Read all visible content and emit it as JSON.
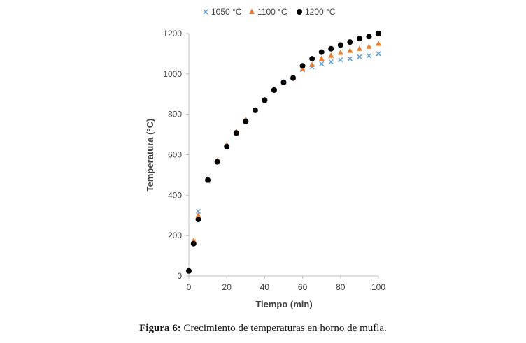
{
  "caption": {
    "label": "Figura 6:",
    "text": "Crecimiento de temperaturas en horno de mufla."
  },
  "chart_data": {
    "type": "scatter",
    "title": "",
    "xlabel": "Tiempo (min)",
    "ylabel": "Temperatura (°C)",
    "xlim": [
      0,
      100
    ],
    "ylim": [
      0,
      1200
    ],
    "xticks": [
      "0",
      "20",
      "40",
      "60",
      "80",
      "100"
    ],
    "yticks": [
      "0",
      "200",
      "400",
      "600",
      "800",
      "1000",
      "1200"
    ],
    "grid": false,
    "legend_position": "top",
    "series": [
      {
        "name": "1050 °C",
        "marker": "x",
        "color": "#5B9BD5",
        "x": [
          0,
          2.5,
          5,
          10,
          15,
          20,
          25,
          30,
          35,
          40,
          45,
          50,
          55,
          60,
          65,
          70,
          75,
          80,
          85,
          90,
          95,
          100
        ],
        "y": [
          25,
          170,
          320,
          470,
          565,
          640,
          705,
          765,
          820,
          870,
          920,
          960,
          980,
          1020,
          1035,
          1050,
          1060,
          1070,
          1075,
          1085,
          1090,
          1100
        ]
      },
      {
        "name": "1100 °C",
        "marker": "triangle",
        "color": "#ED7D31",
        "x": [
          0,
          2.5,
          5,
          10,
          15,
          20,
          25,
          30,
          35,
          40,
          45,
          50,
          55,
          60,
          65,
          70,
          75,
          80,
          85,
          90,
          95,
          100
        ],
        "y": [
          28,
          175,
          300,
          480,
          570,
          650,
          715,
          775,
          825,
          870,
          920,
          960,
          980,
          1025,
          1045,
          1075,
          1090,
          1105,
          1115,
          1125,
          1135,
          1150
        ]
      },
      {
        "name": "1200 °C",
        "marker": "circle",
        "color": "#000000",
        "x": [
          0,
          2.5,
          5,
          10,
          15,
          20,
          25,
          30,
          35,
          40,
          45,
          50,
          55,
          60,
          65,
          70,
          75,
          80,
          85,
          90,
          95,
          100
        ],
        "y": [
          25,
          160,
          280,
          475,
          565,
          640,
          708,
          765,
          820,
          870,
          920,
          958,
          980,
          1040,
          1075,
          1108,
          1125,
          1143,
          1158,
          1175,
          1185,
          1200
        ]
      }
    ]
  }
}
